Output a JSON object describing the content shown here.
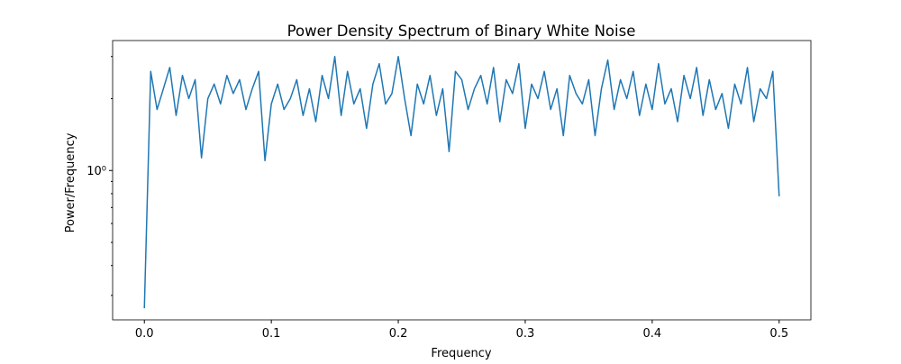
{
  "chart_data": {
    "type": "line",
    "title": "Power Density Spectrum of Binary White Noise",
    "x_label": "Frequency",
    "y_label": "Power/Frequency",
    "x": [
      0,
      0.005,
      0.01,
      0.015,
      0.02,
      0.025,
      0.03,
      0.035,
      0.04,
      0.045,
      0.05,
      0.055,
      0.06,
      0.065,
      0.07,
      0.075,
      0.08,
      0.085,
      0.09,
      0.095,
      0.1,
      0.105,
      0.11,
      0.115,
      0.12,
      0.125,
      0.13,
      0.135,
      0.14,
      0.145,
      0.15,
      0.155,
      0.16,
      0.165,
      0.17,
      0.175,
      0.18,
      0.185,
      0.19,
      0.195,
      0.2,
      0.205,
      0.21,
      0.215,
      0.22,
      0.225,
      0.23,
      0.235,
      0.24,
      0.245,
      0.25,
      0.255,
      0.26,
      0.265,
      0.27,
      0.275,
      0.28,
      0.285,
      0.29,
      0.295,
      0.3,
      0.305,
      0.31,
      0.315,
      0.32,
      0.325,
      0.33,
      0.335,
      0.34,
      0.345,
      0.35,
      0.355,
      0.36,
      0.365,
      0.37,
      0.375,
      0.38,
      0.385,
      0.39,
      0.395,
      0.4,
      0.405,
      0.41,
      0.415,
      0.42,
      0.425,
      0.43,
      0.435,
      0.44,
      0.445,
      0.45,
      0.455,
      0.46,
      0.465,
      0.47,
      0.475,
      0.48,
      0.485,
      0.49,
      0.495,
      0.5
    ],
    "values": [
      0.265,
      2.6,
      1.8,
      2.2,
      2.7,
      1.7,
      2.5,
      2.0,
      2.4,
      1.13,
      2.0,
      2.3,
      1.9,
      2.5,
      2.1,
      2.4,
      1.8,
      2.2,
      2.6,
      1.1,
      1.9,
      2.3,
      1.8,
      2.0,
      2.4,
      1.7,
      2.2,
      1.6,
      2.5,
      2.0,
      3.0,
      1.7,
      2.6,
      1.9,
      2.2,
      1.5,
      2.3,
      2.8,
      1.9,
      2.1,
      3.0,
      2.0,
      1.4,
      2.3,
      1.9,
      2.5,
      1.7,
      2.2,
      1.2,
      2.6,
      2.4,
      1.8,
      2.2,
      2.5,
      1.9,
      2.7,
      1.6,
      2.4,
      2.1,
      2.8,
      1.5,
      2.3,
      2.0,
      2.6,
      1.8,
      2.2,
      1.4,
      2.5,
      2.1,
      1.9,
      2.4,
      1.4,
      2.2,
      2.9,
      1.8,
      2.4,
      2.0,
      2.6,
      1.7,
      2.3,
      1.8,
      2.8,
      1.9,
      2.2,
      1.6,
      2.5,
      2.0,
      2.7,
      1.7,
      2.4,
      1.8,
      2.1,
      1.5,
      2.3,
      1.9,
      2.7,
      1.6,
      2.2,
      2.0,
      2.6,
      0.78
    ],
    "color": "#1f77b4",
    "xlim": [
      -0.025,
      0.525
    ],
    "xticks": [
      {
        "value": 0,
        "label": "0.0"
      },
      0.1,
      0.2,
      0.3,
      0.4,
      0.5
    ],
    "ylim": [
      0.237,
      3.5
    ],
    "y_scale": "log",
    "yticks": [
      {
        "value": 1,
        "label": "10⁰"
      }
    ],
    "y_minor_ticks": [
      0.3,
      0.4,
      0.5,
      0.6,
      0.7,
      0.8,
      0.9,
      2,
      3
    ]
  }
}
